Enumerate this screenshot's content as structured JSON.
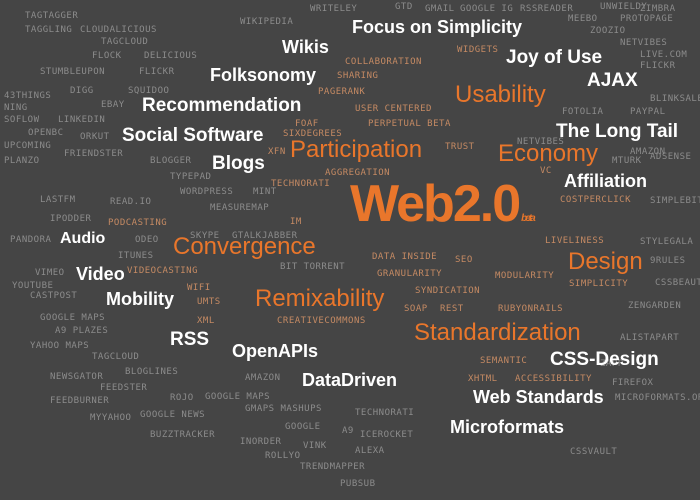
{
  "headline": {
    "text": "Web2.0",
    "tag": "beta"
  },
  "terms_white": [
    "Focus on Simplicity",
    "Wikis",
    "Joy of Use",
    "Folksonomy",
    "AJAX",
    "Recommendation",
    "Social Software",
    "The Long Tail",
    "Blogs",
    "Affiliation",
    "Audio",
    "Video",
    "Mobility",
    "RSS",
    "OpenAPIs",
    "DataDriven",
    "CSS-Design",
    "Web Standards",
    "Microformats"
  ],
  "terms_orange": [
    "Usability",
    "Participation",
    "Economy",
    "Convergence",
    "Design",
    "Remixability",
    "Standardization"
  ],
  "terms_mid": [
    "COLLABORATION",
    "SHARING",
    "PAGERANK",
    "USER CENTERED",
    "PERPETUAL BETA",
    "FOAF",
    "SIXDEGREES",
    "TRUST",
    "XFN",
    "AGGREGATION",
    "TECHNORATI",
    "DATA INSIDE",
    "SEO",
    "GRANULARITY",
    "SYNDICATION",
    "SOAP",
    "REST",
    "MODULARITY",
    "RUBYONRAILS",
    "SEMANTIC",
    "XHTML",
    "ACCESSIBILITY",
    "XML",
    "PODCASTING",
    "VIDEOCASTING",
    "IM",
    "WIFI",
    "UMTS",
    "COSTPERCLICK",
    "LIVELINESS",
    "SIMPLICITY",
    "VC",
    "CREATIVECOMMONS",
    "WIDGETS"
  ],
  "terms_bg": [
    "TAGTAGGER",
    "TAGGLING",
    "CLOUDALICIOUS",
    "TAGCLOUD",
    "FLOCK",
    "DELICIOUS",
    "STUMBLEUPON",
    "FLICKR",
    "43THINGS",
    "DIGG",
    "SQUIDOO",
    "NING",
    "EBAY",
    "SOFLOW",
    "LINKEDIN",
    "OPENBC",
    "ORKUT",
    "UPCOMING",
    "FRIENDSTER",
    "PLANZO",
    "BLOGGER",
    "TYPEPAD",
    "WORDPRESS",
    "MINT",
    "MEASUREMAP",
    "LASTFM",
    "READ.IO",
    "IPODDER",
    "PANDORA",
    "ODEO",
    "ITUNES",
    "SKYPE",
    "GTALK",
    "JABBER",
    "BIT TORRENT",
    "VIMEO",
    "YOUTUBE",
    "CASTPOST",
    "GOOGLE MAPS",
    "A9 PLAZES",
    "YAHOO MAPS",
    "TAGCLOUD",
    "NEWSGATOR",
    "BLOGLINES",
    "FEEDSTER",
    "FEEDBURNER",
    "ROJO",
    "MYYAHOO",
    "GOOGLE NEWS",
    "BUZZTRACKER",
    "AMAZON",
    "GOOGLE MAPS",
    "GMAPS MASHUPS",
    "TECHNORATI",
    "GOOGLE",
    "A9",
    "ICEROCKET",
    "INORDER",
    "VINK",
    "ROLLYO",
    "ALEXA",
    "TRENDMAPPER",
    "PUBSUB",
    "WIKIPEDIA",
    "WRITELEY",
    "GTD",
    "GMAIL",
    "GOOGLE IG",
    "RSSREADER",
    "UNWIELDY",
    "ZIMBRA",
    "MEEBO",
    "PROTOPAGE",
    "ZOOZIO",
    "NETVIBES",
    "LIVE.COM",
    "FLICKR",
    "BLINKSALE",
    "FOTOLIA",
    "PAYPAL",
    "NETVIBES",
    "AMAZON",
    "MTURK",
    "ADSENSE",
    "SIMPLEBITS",
    "STYLEGALA",
    "9RULES",
    "CSSBEAUTY",
    "ZENGARDEN",
    "ALISTAPART",
    "FIREFOX",
    "MICROFORMATS.ORG",
    "CSSVAULT",
    "ZAPP"
  ]
}
